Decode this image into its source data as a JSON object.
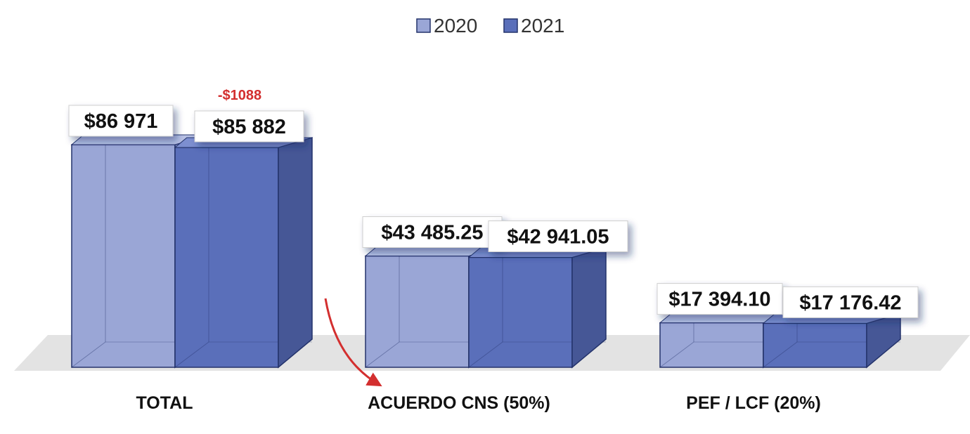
{
  "chart_data": {
    "type": "bar",
    "categories": [
      "TOTAL",
      "ACUERDO CNS (50%)",
      "PEF / LCF (20%)"
    ],
    "series": [
      {
        "name": "2020",
        "values": [
          86971,
          43485.25,
          17394.1
        ],
        "labels": [
          "$86 971",
          "$43 485.25",
          "$17 394.10"
        ]
      },
      {
        "name": "2021",
        "values": [
          85882,
          42941.05,
          17176.42
        ],
        "labels": [
          "$85 882",
          "$42 941.05",
          "$17 176.42"
        ]
      }
    ],
    "annotations": [
      {
        "text": "-$1088",
        "category": "TOTAL",
        "series": "2021"
      }
    ],
    "ylim": [
      0,
      100000
    ],
    "legend_position": "top-center",
    "grid": false,
    "colors": {
      "s2020_front": "#9aa6d6",
      "s2020_side": "#7f8cc2",
      "s2020_top": "#b7c0e4",
      "s2021_front": "#5a6fba",
      "s2021_side": "#465796",
      "s2021_top": "#7d8fd0",
      "edge": "#24336b",
      "floor": "#e3e3e3",
      "annotation": "#d32f2f",
      "arrow": "#d32f2f"
    }
  }
}
